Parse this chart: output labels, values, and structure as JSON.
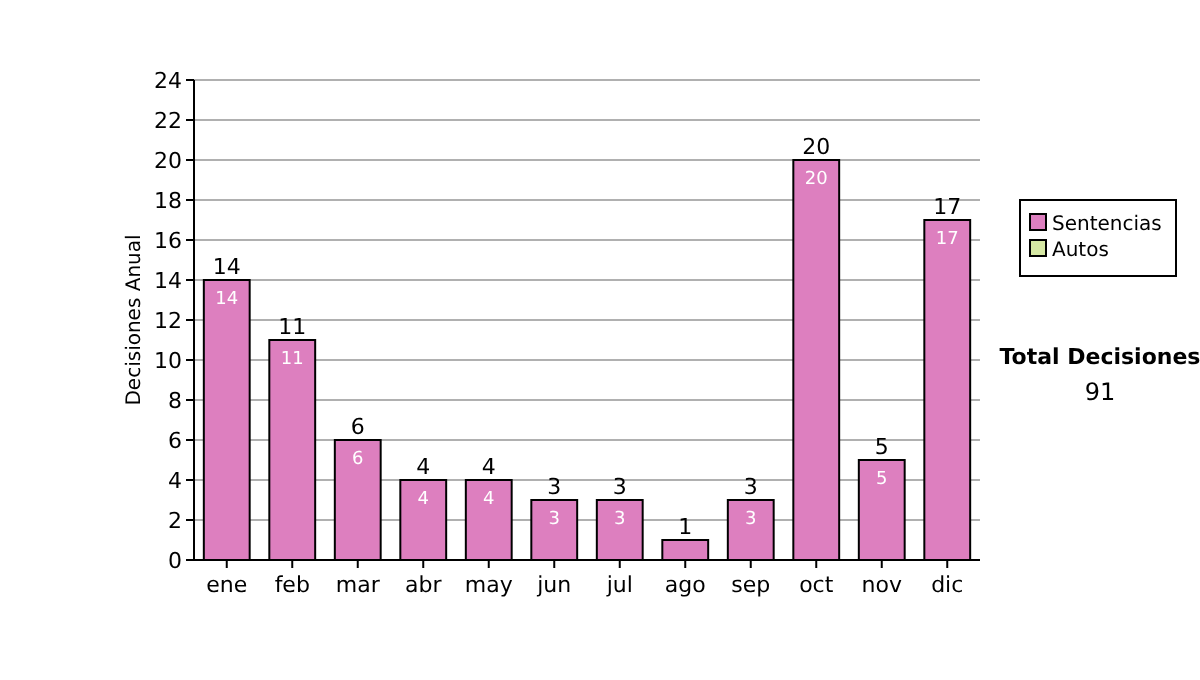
{
  "chart_data": {
    "type": "bar",
    "ylabel": "Decisiones Anual",
    "categories": [
      "ene",
      "feb",
      "mar",
      "abr",
      "may",
      "jun",
      "jul",
      "ago",
      "sep",
      "oct",
      "nov",
      "dic"
    ],
    "series": [
      {
        "name": "Sentencias",
        "color": "#dd7fbf",
        "values": [
          14,
          11,
          6,
          4,
          4,
          3,
          3,
          1,
          3,
          20,
          5,
          17
        ],
        "value_labels": [
          "14",
          "11",
          "6",
          "4",
          "4",
          "3",
          "3",
          null,
          "3",
          "20",
          "5",
          "17"
        ]
      },
      {
        "name": "Autos",
        "color": "#d6e8a4",
        "values": [
          0,
          0,
          0,
          0,
          0,
          0,
          0,
          0,
          0,
          0,
          0,
          0
        ]
      }
    ],
    "stacked": true,
    "totals": [
      "14",
      "11",
      "6",
      "4",
      "4",
      "3",
      "3",
      "1",
      "3",
      "20",
      "5",
      "17"
    ],
    "ylim": [
      0,
      24
    ],
    "yticks": [
      0,
      2,
      4,
      6,
      8,
      10,
      12,
      14,
      16,
      18,
      20,
      22,
      24
    ],
    "grid": "y",
    "legend": "right",
    "annotations": [
      "Total Decisiones",
      "91"
    ]
  }
}
